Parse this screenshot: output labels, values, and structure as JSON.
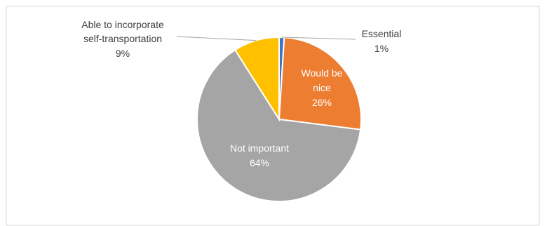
{
  "chart_data": {
    "type": "pie",
    "slices": [
      {
        "name": "Essential",
        "value": 1,
        "label": "1%",
        "color": "#4472C4"
      },
      {
        "name": "Would be nice",
        "value": 26,
        "label": "26%",
        "color": "#ED7D31"
      },
      {
        "name": "Not important",
        "value": 64,
        "label": "64%",
        "color": "#A5A5A5"
      },
      {
        "name": "Able to incorporate self-transportation",
        "value": 9,
        "label": "9%",
        "color": "#FFC000"
      }
    ],
    "labels": {
      "essential": {
        "name": "Essential",
        "pct": "1%"
      },
      "would_be_nice": {
        "line1": "Would be",
        "line2": "nice",
        "pct": "26%"
      },
      "not_important": {
        "name": "Not important",
        "pct": "64%"
      },
      "self_transport": {
        "line1": "Able to incorporate",
        "line2": "self-transportation",
        "pct": "9%"
      }
    },
    "start_angle": "top, clockwise"
  }
}
